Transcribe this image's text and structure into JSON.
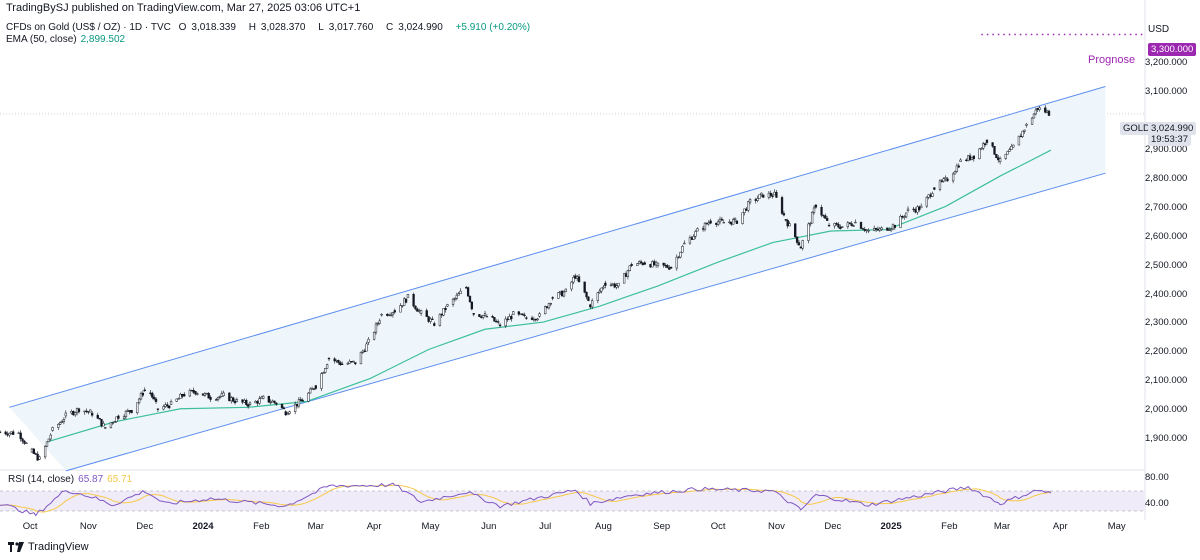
{
  "header": {
    "publisher": "TradingBySJ published on TradingView.com, Mar 27, 2025 03:06 UTC+1"
  },
  "legend": {
    "symbol": "CFDs on Gold (US$ / OZ) · 1D · TVC",
    "open_label": "O",
    "open": "3,018.339",
    "high_label": "H",
    "high": "3,028.370",
    "low_label": "L",
    "low": "3,017.760",
    "close_label": "C",
    "close": "3,024.990",
    "change": "+5.910 (+0.20%)",
    "ema_label": "EMA (50, close)",
    "ema_value": "2,899.502"
  },
  "price_axis": {
    "currency": "USD",
    "labels": [
      "3,200.000",
      "3,100.000",
      "2,900.000",
      "2,800.000",
      "2,700.000",
      "2,600.000",
      "2,500.000",
      "2,400.000",
      "2,300.000",
      "2,200.000",
      "2,100.000",
      "2,000.000",
      "1,900.000"
    ],
    "target_tag": "3,300.000",
    "current_symbol": "GOLD",
    "current_price": "3,024.990",
    "countdown": "19:53:37"
  },
  "annotation": {
    "prognose": "Prognose"
  },
  "rsi": {
    "label": "RSI (14, close)",
    "value": "65.87",
    "ma_value": "65.71",
    "axis_labels": [
      "80.00",
      "40.00"
    ]
  },
  "time_axis": [
    "Oct",
    "Nov",
    "Dec",
    "2024",
    "Feb",
    "Mar",
    "Apr",
    "May",
    "Jun",
    "Jul",
    "Aug",
    "Sep",
    "Oct",
    "Nov",
    "Dec",
    "2025",
    "Feb",
    "Mar",
    "Apr",
    "May"
  ],
  "footer": {
    "brand": "TradingView"
  },
  "colors": {
    "channel_line": "#5b8def",
    "channel_fill": "#eef6fb",
    "ema": "#3dbf9a",
    "candle": "#131722",
    "rsi": "#7e57c2",
    "rsi_ma": "#f7c948",
    "target": "#9c27b0",
    "rsi_band": "#f0ebf8"
  },
  "chart_data": {
    "type": "candlestick",
    "title": "CFDs on Gold (US$ / OZ) · 1D · TVC",
    "ylabel": "USD",
    "ylim": [
      1800,
      3350
    ],
    "x_range": [
      "2023-09-15",
      "2025-05-15"
    ],
    "closes": [
      [
        "2023-09-15",
        1925
      ],
      [
        "2023-09-25",
        1920
      ],
      [
        "2023-10-02",
        1855
      ],
      [
        "2023-10-06",
        1830
      ],
      [
        "2023-10-13",
        1930
      ],
      [
        "2023-10-20",
        1980
      ],
      [
        "2023-10-27",
        2005
      ],
      [
        "2023-11-03",
        1990
      ],
      [
        "2023-11-10",
        1940
      ],
      [
        "2023-11-17",
        1980
      ],
      [
        "2023-11-24",
        2000
      ],
      [
        "2023-12-01",
        2070
      ],
      [
        "2023-12-04",
        2060
      ],
      [
        "2023-12-08",
        2005
      ],
      [
        "2023-12-15",
        2020
      ],
      [
        "2023-12-22",
        2055
      ],
      [
        "2023-12-28",
        2065
      ],
      [
        "2024-01-05",
        2045
      ],
      [
        "2024-01-12",
        2050
      ],
      [
        "2024-01-19",
        2030
      ],
      [
        "2024-01-26",
        2020
      ],
      [
        "2024-02-02",
        2040
      ],
      [
        "2024-02-09",
        2025
      ],
      [
        "2024-02-14",
        1995
      ],
      [
        "2024-02-23",
        2035
      ],
      [
        "2024-03-01",
        2085
      ],
      [
        "2024-03-08",
        2180
      ],
      [
        "2024-03-15",
        2160
      ],
      [
        "2024-03-22",
        2165
      ],
      [
        "2024-03-29",
        2235
      ],
      [
        "2024-04-05",
        2330
      ],
      [
        "2024-04-12",
        2345
      ],
      [
        "2024-04-19",
        2390
      ],
      [
        "2024-04-26",
        2335
      ],
      [
        "2024-05-03",
        2300
      ],
      [
        "2024-05-10",
        2360
      ],
      [
        "2024-05-20",
        2425
      ],
      [
        "2024-05-24",
        2335
      ],
      [
        "2024-05-31",
        2325
      ],
      [
        "2024-06-07",
        2295
      ],
      [
        "2024-06-14",
        2330
      ],
      [
        "2024-06-21",
        2320
      ],
      [
        "2024-06-28",
        2325
      ],
      [
        "2024-07-05",
        2390
      ],
      [
        "2024-07-12",
        2410
      ],
      [
        "2024-07-17",
        2465
      ],
      [
        "2024-07-25",
        2365
      ],
      [
        "2024-08-02",
        2440
      ],
      [
        "2024-08-09",
        2430
      ],
      [
        "2024-08-16",
        2505
      ],
      [
        "2024-08-23",
        2510
      ],
      [
        "2024-08-30",
        2500
      ],
      [
        "2024-09-06",
        2495
      ],
      [
        "2024-09-13",
        2575
      ],
      [
        "2024-09-20",
        2620
      ],
      [
        "2024-09-27",
        2655
      ],
      [
        "2024-10-04",
        2650
      ],
      [
        "2024-10-11",
        2655
      ],
      [
        "2024-10-18",
        2720
      ],
      [
        "2024-10-25",
        2745
      ],
      [
        "2024-10-31",
        2745
      ],
      [
        "2024-11-06",
        2660
      ],
      [
        "2024-11-14",
        2565
      ],
      [
        "2024-11-22",
        2710
      ],
      [
        "2024-11-29",
        2640
      ],
      [
        "2024-12-06",
        2635
      ],
      [
        "2024-12-13",
        2650
      ],
      [
        "2024-12-20",
        2620
      ],
      [
        "2024-12-27",
        2625
      ],
      [
        "2025-01-03",
        2640
      ],
      [
        "2025-01-10",
        2690
      ],
      [
        "2025-01-17",
        2700
      ],
      [
        "2025-01-24",
        2770
      ],
      [
        "2025-01-31",
        2800
      ],
      [
        "2025-02-07",
        2860
      ],
      [
        "2025-02-14",
        2880
      ],
      [
        "2025-02-21",
        2935
      ],
      [
        "2025-02-28",
        2860
      ],
      [
        "2025-03-07",
        2910
      ],
      [
        "2025-03-14",
        2985
      ],
      [
        "2025-03-20",
        3045
      ],
      [
        "2025-03-27",
        3025
      ]
    ],
    "ema50": [
      [
        "2023-10-10",
        1890
      ],
      [
        "2023-11-15",
        1960
      ],
      [
        "2023-12-20",
        2005
      ],
      [
        "2024-01-25",
        2010
      ],
      [
        "2024-02-25",
        2030
      ],
      [
        "2024-03-30",
        2110
      ],
      [
        "2024-04-30",
        2210
      ],
      [
        "2024-05-30",
        2280
      ],
      [
        "2024-06-30",
        2305
      ],
      [
        "2024-07-30",
        2360
      ],
      [
        "2024-08-30",
        2430
      ],
      [
        "2024-09-30",
        2510
      ],
      [
        "2024-10-30",
        2580
      ],
      [
        "2024-11-30",
        2620
      ],
      [
        "2024-12-30",
        2625
      ],
      [
        "2025-01-30",
        2705
      ],
      [
        "2025-02-28",
        2810
      ],
      [
        "2025-03-27",
        2899.5
      ]
    ],
    "channel_upper": [
      [
        "2023-09-20",
        2010
      ],
      [
        "2025-04-25",
        3120
      ]
    ],
    "channel_lower": [
      [
        "2023-10-20",
        1790
      ],
      [
        "2025-04-25",
        2820
      ]
    ],
    "target": {
      "value": 3300,
      "label": "Prognose",
      "from": "2025-02-18"
    },
    "rsi": {
      "ylim": [
        20,
        90
      ],
      "overbought": 70,
      "oversold": 30,
      "values": [
        [
          "2023-09-15",
          45
        ],
        [
          "2023-10-04",
          22
        ],
        [
          "2023-10-20",
          72
        ],
        [
          "2023-11-03",
          58
        ],
        [
          "2023-11-14",
          42
        ],
        [
          "2023-12-01",
          70
        ],
        [
          "2023-12-12",
          44
        ],
        [
          "2024-01-05",
          55
        ],
        [
          "2024-02-14",
          40
        ],
        [
          "2024-03-08",
          80
        ],
        [
          "2024-04-12",
          82
        ],
        [
          "2024-04-26",
          48
        ],
        [
          "2024-05-20",
          68
        ],
        [
          "2024-06-07",
          40
        ],
        [
          "2024-07-17",
          72
        ],
        [
          "2024-07-25",
          45
        ],
        [
          "2024-08-16",
          62
        ],
        [
          "2024-09-20",
          74
        ],
        [
          "2024-10-30",
          70
        ],
        [
          "2024-11-14",
          32
        ],
        [
          "2024-11-22",
          62
        ],
        [
          "2024-12-20",
          42
        ],
        [
          "2025-01-24",
          66
        ],
        [
          "2025-02-11",
          78
        ],
        [
          "2025-02-28",
          45
        ],
        [
          "2025-03-20",
          72
        ],
        [
          "2025-03-27",
          65.87
        ]
      ]
    }
  }
}
